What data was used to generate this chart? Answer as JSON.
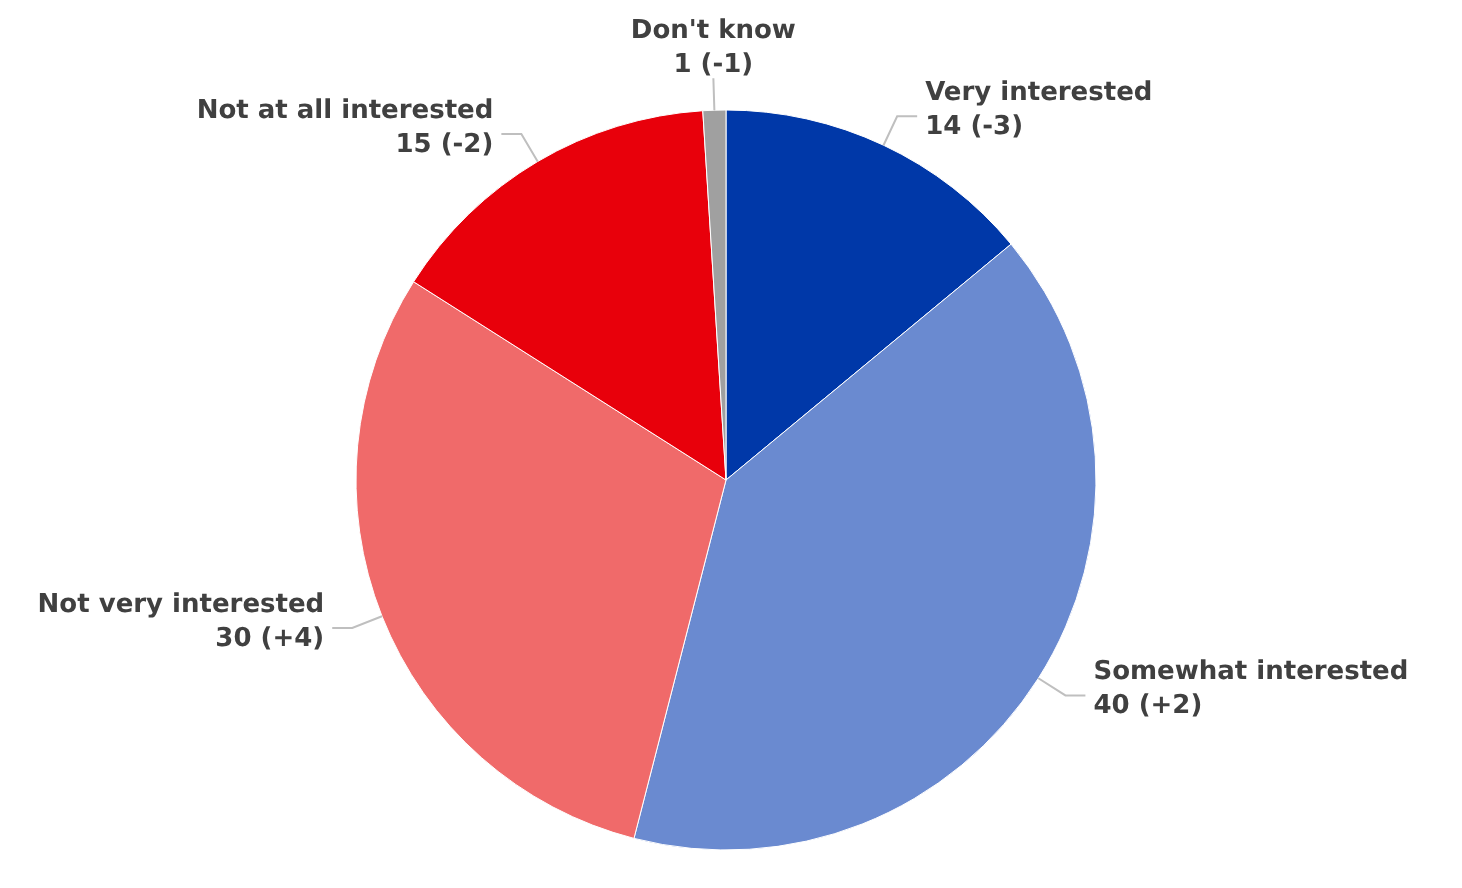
{
  "chart_data": {
    "type": "pie",
    "categories": [
      "Very interested",
      "Somewhat interested",
      "Not very interested",
      "Not at all interested",
      "Don't know"
    ],
    "values": [
      14,
      40,
      30,
      15,
      1
    ],
    "colors": [
      "#0038a8",
      "#6a8ad0",
      "#f06a6a",
      "#e8000b",
      "#a0a0a0"
    ],
    "value_labels": [
      "14 (-3)",
      "40 (+2)",
      "30 (+4)",
      "15 (-2)",
      "1 (-1)"
    ]
  }
}
